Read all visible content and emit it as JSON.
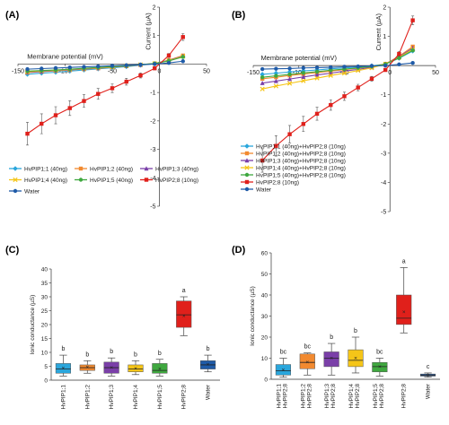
{
  "panels": [
    "(A)",
    "(B)",
    "(C)",
    "(D)"
  ],
  "chart_data": [
    {
      "panel": "(A)",
      "type": "line",
      "xlabel": "Membrane potential (mV)",
      "ylabel": "Current (µA)",
      "xlim": [
        -150,
        50
      ],
      "ylim": [
        -5,
        2
      ],
      "xticks": [
        -150,
        -100,
        -50,
        0,
        50
      ],
      "yticks": [
        -5,
        -4,
        -3,
        -2,
        -1,
        0,
        1,
        2
      ],
      "x": [
        -140,
        -125,
        -110,
        -95,
        -80,
        -65,
        -50,
        -35,
        -20,
        -5,
        10,
        25
      ],
      "series": [
        {
          "name": "HvPIP1;1 (40ng)",
          "color": "#2aa6dc",
          "marker": "diamond",
          "values": [
            -0.36,
            -0.32,
            -0.29,
            -0.25,
            -0.21,
            -0.17,
            -0.13,
            -0.09,
            -0.04,
            0.01,
            0.12,
            0.26
          ]
        },
        {
          "name": "HvPIP1;2 (40ng)",
          "color": "#f28a30",
          "marker": "square",
          "values": [
            -0.3,
            -0.27,
            -0.24,
            -0.21,
            -0.18,
            -0.15,
            -0.11,
            -0.07,
            -0.03,
            0.02,
            0.14,
            0.3
          ]
        },
        {
          "name": "HvPIP1;3 (40ng)",
          "color": "#7a3fa8",
          "marker": "triangle",
          "values": [
            -0.28,
            -0.26,
            -0.23,
            -0.2,
            -0.17,
            -0.14,
            -0.1,
            -0.07,
            -0.03,
            0.02,
            0.13,
            0.28
          ]
        },
        {
          "name": "HvPIP1;4 (40ng)",
          "color": "#f5c518",
          "marker": "x",
          "values": [
            -0.27,
            -0.24,
            -0.22,
            -0.19,
            -0.16,
            -0.13,
            -0.1,
            -0.06,
            -0.02,
            0.02,
            0.12,
            0.27
          ]
        },
        {
          "name": "HvPIP1;5 (40ng)",
          "color": "#3fa83f",
          "marker": "circle",
          "values": [
            -0.25,
            -0.23,
            -0.21,
            -0.18,
            -0.15,
            -0.12,
            -0.09,
            -0.06,
            -0.02,
            0.02,
            0.11,
            0.25
          ]
        },
        {
          "name": "HvPIP2;8 (10ng)",
          "color": "#e0201b",
          "marker": "square",
          "errorbars": true,
          "values": [
            -2.45,
            -2.1,
            -1.8,
            -1.55,
            -1.3,
            -1.05,
            -0.85,
            -0.62,
            -0.4,
            -0.15,
            0.3,
            0.95
          ],
          "errors": [
            0.4,
            0.35,
            0.3,
            0.26,
            0.22,
            0.19,
            0.15,
            0.12,
            0.09,
            0.05,
            0.07,
            0.12
          ]
        },
        {
          "name": "Water",
          "color": "#1f5ba8",
          "marker": "circle",
          "values": [
            -0.18,
            -0.16,
            -0.14,
            -0.12,
            -0.1,
            -0.08,
            -0.06,
            -0.04,
            -0.02,
            0.0,
            0.04,
            0.1
          ]
        }
      ]
    },
    {
      "panel": "(B)",
      "type": "line",
      "xlabel": "Membrane potential (mV)",
      "ylabel": "Current (µA)",
      "xlim": [
        -150,
        50
      ],
      "ylim": [
        -5,
        2
      ],
      "xticks": [
        -150,
        -100,
        -50,
        0,
        50
      ],
      "yticks": [
        -5,
        -4,
        -3,
        -2,
        -1,
        0,
        1,
        2
      ],
      "x": [
        -140,
        -125,
        -110,
        -95,
        -80,
        -65,
        -50,
        -35,
        -20,
        -5,
        10,
        25
      ],
      "series": [
        {
          "name": "HvPIP1;1 (40ng)+HvPIP2;8 (10ng)",
          "color": "#2aa6dc",
          "marker": "diamond",
          "values": [
            -0.3,
            -0.26,
            -0.22,
            -0.18,
            -0.15,
            -0.11,
            -0.08,
            -0.05,
            -0.01,
            0.05,
            0.25,
            0.5
          ]
        },
        {
          "name": "HvPIP1;2 (40ng)+HvPIP2;8 (10ng)",
          "color": "#f28a30",
          "marker": "square",
          "values": [
            -0.45,
            -0.4,
            -0.34,
            -0.29,
            -0.24,
            -0.19,
            -0.14,
            -0.09,
            -0.04,
            0.06,
            0.32,
            0.65
          ]
        },
        {
          "name": "HvPIP1;3 (40ng)+HvPIP2;8 (10ng)",
          "color": "#7a3fa8",
          "marker": "triangle",
          "values": [
            -0.6,
            -0.53,
            -0.46,
            -0.39,
            -0.32,
            -0.26,
            -0.19,
            -0.13,
            -0.06,
            0.05,
            0.3,
            0.6
          ]
        },
        {
          "name": "HvPIP1;4 (40ng)+HvPIP2;8 (10ng)",
          "color": "#f5c518",
          "marker": "x",
          "values": [
            -0.8,
            -0.7,
            -0.61,
            -0.52,
            -0.43,
            -0.34,
            -0.26,
            -0.17,
            -0.08,
            0.05,
            0.28,
            0.56
          ]
        },
        {
          "name": "HvPIP1;5 (40ng)+HvPIP2;8 (10ng)",
          "color": "#3fa83f",
          "marker": "circle",
          "values": [
            -0.4,
            -0.35,
            -0.3,
            -0.25,
            -0.21,
            -0.16,
            -0.12,
            -0.08,
            -0.03,
            0.05,
            0.26,
            0.52
          ]
        },
        {
          "name": "HvPIP2;8 (10ng)",
          "color": "#e0201b",
          "marker": "square",
          "errorbars": true,
          "values": [
            -3.25,
            -2.75,
            -2.35,
            -2.0,
            -1.65,
            -1.35,
            -1.05,
            -0.75,
            -0.45,
            -0.15,
            0.4,
            1.55
          ],
          "errors": [
            0.4,
            0.35,
            0.3,
            0.26,
            0.22,
            0.18,
            0.14,
            0.11,
            0.08,
            0.05,
            0.08,
            0.15
          ]
        },
        {
          "name": "Water",
          "color": "#1f5ba8",
          "marker": "circle",
          "values": [
            -0.12,
            -0.11,
            -0.1,
            -0.08,
            -0.07,
            -0.06,
            -0.04,
            -0.03,
            -0.01,
            0.0,
            0.04,
            0.09
          ]
        }
      ]
    },
    {
      "panel": "(C)",
      "type": "box",
      "ylabel": "Ionic conductance (µS)",
      "ylim": [
        0,
        40
      ],
      "yticks": [
        0,
        5,
        10,
        15,
        20,
        25,
        30,
        35,
        40
      ],
      "categories": [
        "HvPIP1;1",
        "HvPIP1;2",
        "HvPIP1;3",
        "HvPIP1;4",
        "HvPIP1;5",
        "HvPIP2;8",
        "Water"
      ],
      "colors": [
        "#2aa6dc",
        "#f28a30",
        "#7a3fa8",
        "#f5c518",
        "#3fa83f",
        "#e0201b",
        "#1f5ba8"
      ],
      "boxes": [
        {
          "min": 1.5,
          "q1": 2.5,
          "median": 4.0,
          "q3": 6.0,
          "max": 9.0,
          "mean": 4.3
        },
        {
          "min": 2.5,
          "q1": 3.5,
          "median": 4.5,
          "q3": 5.5,
          "max": 7.0,
          "mean": 4.6
        },
        {
          "min": 1.5,
          "q1": 2.5,
          "median": 4.5,
          "q3": 6.5,
          "max": 8.0,
          "mean": 4.5
        },
        {
          "min": 2.0,
          "q1": 3.0,
          "median": 4.0,
          "q3": 5.5,
          "max": 7.0,
          "mean": 4.2
        },
        {
          "min": 1.5,
          "q1": 2.5,
          "median": 3.5,
          "q3": 6.0,
          "max": 7.5,
          "mean": 4.0
        },
        {
          "min": 16.0,
          "q1": 19.0,
          "median": 23.5,
          "q3": 28.5,
          "max": 30.0,
          "mean": 23.0
        },
        {
          "min": 3.0,
          "q1": 4.0,
          "median": 5.5,
          "q3": 7.0,
          "max": 9.0,
          "mean": 5.6
        }
      ],
      "significance": [
        "b",
        "b",
        "b",
        "b",
        "b",
        "a",
        "b"
      ]
    },
    {
      "panel": "(D)",
      "type": "box",
      "ylabel": "Ionic conductance (µS)",
      "ylim": [
        0,
        60
      ],
      "yticks": [
        0,
        10,
        20,
        30,
        40,
        50,
        60
      ],
      "categories": [
        "HvPIP1;1 HvPIP2;8",
        "HvPIP1;2 HvPIP2;8",
        "HvPIP1;3 HvPIP2;8",
        "HvPIP1;4 HvPIP2;8",
        "HvPIP1;5 HvPIP2;8",
        "HvPIP2;8",
        "Water"
      ],
      "colors": [
        "#2aa6dc",
        "#f28a30",
        "#7a3fa8",
        "#f5c518",
        "#3fa83f",
        "#e0201b",
        "#1f5ba8"
      ],
      "boxes": [
        {
          "min": 1.0,
          "q1": 2.0,
          "median": 4.0,
          "q3": 7.0,
          "max": 10.0,
          "mean": 4.5
        },
        {
          "min": 2.0,
          "q1": 5.0,
          "median": 8.0,
          "q3": 12.0,
          "max": 12.5,
          "mean": 8.0
        },
        {
          "min": 2.0,
          "q1": 6.0,
          "median": 10.0,
          "q3": 13.0,
          "max": 17.0,
          "mean": 10.0
        },
        {
          "min": 3.0,
          "q1": 6.0,
          "median": 9.0,
          "q3": 14.0,
          "max": 20.0,
          "mean": 10.0
        },
        {
          "min": 1.5,
          "q1": 3.5,
          "median": 6.0,
          "q3": 8.0,
          "max": 10.0,
          "mean": 6.0
        },
        {
          "min": 22.0,
          "q1": 26.0,
          "median": 29.0,
          "q3": 40.0,
          "max": 53.0,
          "mean": 32.0
        },
        {
          "min": 1.0,
          "q1": 1.5,
          "median": 2.0,
          "q3": 2.5,
          "max": 3.0,
          "mean": 2.0
        }
      ],
      "significance": [
        "bc",
        "bc",
        "b",
        "b",
        "bc",
        "a",
        "c"
      ]
    }
  ]
}
